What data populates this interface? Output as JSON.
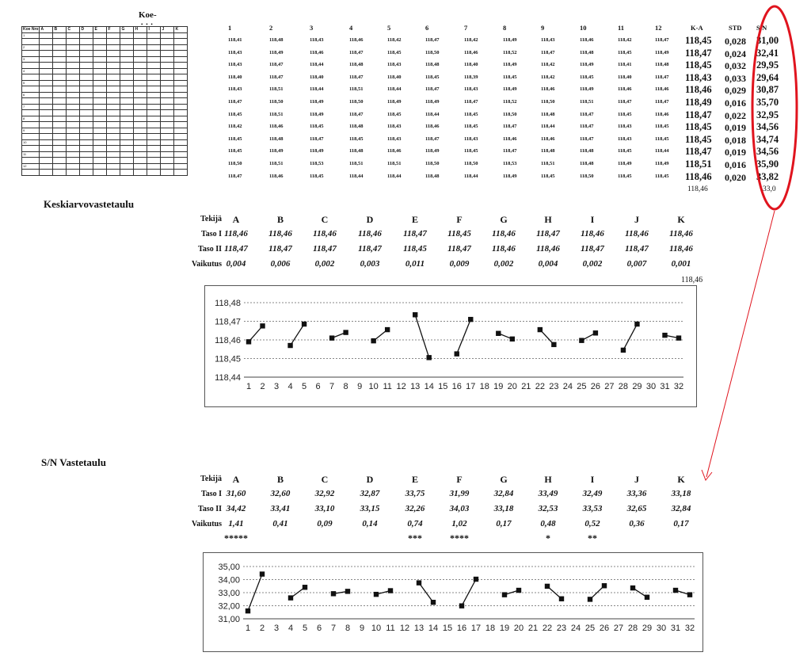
{
  "mini_table": {
    "title": "Koe-",
    "dots": "• • •",
    "headers": [
      "Koe Nro",
      "A",
      "B",
      "C",
      "D",
      "E",
      "F",
      "G",
      "H",
      "I",
      "J",
      "K"
    ],
    "row_numbers": [
      "1",
      "2",
      "3",
      "4",
      "5",
      "6",
      "7",
      "8",
      "9",
      "10",
      "11",
      "12"
    ]
  },
  "measure_table": {
    "column_headers": [
      "1",
      "2",
      "3",
      "4",
      "5",
      "6",
      "7",
      "8",
      "9",
      "10",
      "11",
      "12",
      "K-A",
      "STD",
      "S/N"
    ],
    "rows": [
      {
        "values": [
          "118,41",
          "118,48",
          "118,43",
          "118,46",
          "118,42",
          "118,47",
          "118,42",
          "118,49",
          "118,43",
          "118,46",
          "118,42",
          "118,47"
        ],
        "ka": "118,45",
        "std": "0,028",
        "sn": "31,00"
      },
      {
        "values": [
          "118,43",
          "118,49",
          "118,46",
          "118,47",
          "118,45",
          "118,50",
          "118,46",
          "118,52",
          "118,47",
          "118,48",
          "118,45",
          "118,49"
        ],
        "ka": "118,47",
        "std": "0,024",
        "sn": "32,41"
      },
      {
        "values": [
          "118,43",
          "118,47",
          "118,44",
          "118,48",
          "118,43",
          "118,48",
          "118,40",
          "118,49",
          "118,42",
          "118,49",
          "118,41",
          "118,48"
        ],
        "ka": "118,45",
        "std": "0,032",
        "sn": "29,95"
      },
      {
        "values": [
          "118,40",
          "118,47",
          "118,40",
          "118,47",
          "118,40",
          "118,45",
          "118,39",
          "118,45",
          "118,42",
          "118,45",
          "118,40",
          "118,47"
        ],
        "ka": "118,43",
        "std": "0,033",
        "sn": "29,64"
      },
      {
        "values": [
          "118,43",
          "118,51",
          "118,44",
          "118,51",
          "118,44",
          "118,47",
          "118,43",
          "118,49",
          "118,46",
          "118,49",
          "118,46",
          "118,46"
        ],
        "ka": "118,46",
        "std": "0,029",
        "sn": "30,87"
      },
      {
        "values": [
          "118,47",
          "118,50",
          "118,49",
          "118,50",
          "118,49",
          "118,49",
          "118,47",
          "118,52",
          "118,50",
          "118,51",
          "118,47",
          "118,47"
        ],
        "ka": "118,49",
        "std": "0,016",
        "sn": "35,70"
      },
      {
        "values": [
          "118,45",
          "118,51",
          "118,49",
          "118,47",
          "118,45",
          "118,44",
          "118,45",
          "118,50",
          "118,48",
          "118,47",
          "118,45",
          "118,46"
        ],
        "ka": "118,47",
        "std": "0,022",
        "sn": "32,95"
      },
      {
        "values": [
          "118,42",
          "118,46",
          "118,45",
          "118,48",
          "118,43",
          "118,46",
          "118,45",
          "118,47",
          "118,44",
          "118,47",
          "118,43",
          "118,45"
        ],
        "ka": "118,45",
        "std": "0,019",
        "sn": "34,56"
      },
      {
        "values": [
          "118,45",
          "118,48",
          "118,47",
          "118,45",
          "118,43",
          "118,47",
          "118,43",
          "118,46",
          "118,46",
          "118,47",
          "118,43",
          "118,45"
        ],
        "ka": "118,45",
        "std": "0,018",
        "sn": "34,74"
      },
      {
        "values": [
          "118,45",
          "118,49",
          "118,49",
          "118,48",
          "118,46",
          "118,49",
          "118,45",
          "118,47",
          "118,48",
          "118,48",
          "118,45",
          "118,44"
        ],
        "ka": "118,47",
        "std": "0,019",
        "sn": "34,56"
      },
      {
        "values": [
          "118,50",
          "118,51",
          "118,53",
          "118,51",
          "118,51",
          "118,50",
          "118,50",
          "118,53",
          "118,51",
          "118,48",
          "118,49",
          "118,49"
        ],
        "ka": "118,51",
        "std": "0,016",
        "sn": "35,90"
      },
      {
        "values": [
          "118,47",
          "118,46",
          "118,45",
          "118,44",
          "118,44",
          "118,48",
          "118,44",
          "118,49",
          "118,45",
          "118,50",
          "118,45",
          "118,45"
        ],
        "ka": "118,46",
        "std": "0,020",
        "sn": "33,82"
      }
    ],
    "footer_mean": "118,46",
    "footer_sn": "33,0"
  },
  "mean_table": {
    "title": "Keskiarvovastetaulu",
    "labels": {
      "factor": "Tekijä",
      "level1": "Taso I",
      "level2": "Taso II",
      "effect": "Vaikutus"
    },
    "factors": [
      "A",
      "B",
      "C",
      "D",
      "E",
      "F",
      "G",
      "H",
      "I",
      "J",
      "K"
    ],
    "level1": [
      "118,46",
      "118,46",
      "118,46",
      "118,46",
      "118,47",
      "118,45",
      "118,46",
      "118,47",
      "118,46",
      "118,46",
      "118,46"
    ],
    "level2": [
      "118,47",
      "118,47",
      "118,47",
      "118,47",
      "118,45",
      "118,47",
      "118,46",
      "118,46",
      "118,47",
      "118,47",
      "118,46"
    ],
    "effect": [
      "0,004",
      "0,006",
      "0,002",
      "0,003",
      "0,011",
      "0,009",
      "0,002",
      "0,004",
      "0,002",
      "0,007",
      "0,001"
    ],
    "grand_mean": "118,46"
  },
  "sn_table": {
    "title": "S/N Vastetaulu",
    "labels": {
      "factor": "Tekijä",
      "level1": "Taso I",
      "level2": "Taso II",
      "effect": "Vaikutus"
    },
    "factors": [
      "A",
      "B",
      "C",
      "D",
      "E",
      "F",
      "G",
      "H",
      "I",
      "J",
      "K"
    ],
    "level1": [
      "31,60",
      "32,60",
      "32,92",
      "32,87",
      "33,75",
      "31,99",
      "32,84",
      "33,49",
      "32,49",
      "33,36",
      "33,18"
    ],
    "level2": [
      "34,42",
      "33,41",
      "33,10",
      "33,15",
      "32,26",
      "34,03",
      "33,18",
      "32,53",
      "33,53",
      "32,65",
      "32,84"
    ],
    "effect": [
      "1,41",
      "0,41",
      "0,09",
      "0,14",
      "0,74",
      "1,02",
      "0,17",
      "0,48",
      "0,52",
      "0,36",
      "0,17"
    ],
    "significance": [
      "*****",
      "",
      "",
      "",
      "***",
      "****",
      "",
      "*",
      "**",
      "",
      ""
    ]
  },
  "chart_data": [
    {
      "type": "line",
      "xticks": [
        "1",
        "2",
        "3",
        "4",
        "5",
        "6",
        "7",
        "8",
        "9",
        "10",
        "11",
        "12",
        "13",
        "14",
        "15",
        "16",
        "17",
        "18",
        "19",
        "20",
        "21",
        "22",
        "23",
        "24",
        "25",
        "26",
        "27",
        "28",
        "29",
        "30",
        "31",
        "32"
      ],
      "yticks": [
        "118,44",
        "118,45",
        "118,46",
        "118,47",
        "118,48"
      ],
      "ylim": [
        118.44,
        118.48
      ],
      "grid": true,
      "segments": [
        {
          "x": [
            1,
            2
          ],
          "y": [
            118.459,
            118.4675
          ]
        },
        {
          "x": [
            4,
            5
          ],
          "y": [
            118.457,
            118.4685
          ]
        },
        {
          "x": [
            7,
            8
          ],
          "y": [
            118.461,
            118.464
          ]
        },
        {
          "x": [
            10,
            11
          ],
          "y": [
            118.4595,
            118.4655
          ]
        },
        {
          "x": [
            13,
            14
          ],
          "y": [
            118.4735,
            118.4505
          ]
        },
        {
          "x": [
            16,
            17
          ],
          "y": [
            118.4525,
            118.471
          ]
        },
        {
          "x": [
            19,
            20
          ],
          "y": [
            118.4635,
            118.4605
          ]
        },
        {
          "x": [
            22,
            23
          ],
          "y": [
            118.4655,
            118.4575
          ]
        },
        {
          "x": [
            25,
            26
          ],
          "y": [
            118.4597,
            118.4637
          ]
        },
        {
          "x": [
            28,
            29
          ],
          "y": [
            118.4545,
            118.4685
          ]
        },
        {
          "x": [
            31,
            32
          ],
          "y": [
            118.4625,
            118.461
          ]
        }
      ]
    },
    {
      "type": "line",
      "xticks": [
        "1",
        "2",
        "3",
        "4",
        "5",
        "6",
        "7",
        "8",
        "9",
        "10",
        "11",
        "12",
        "13",
        "14",
        "15",
        "16",
        "17",
        "18",
        "19",
        "20",
        "21",
        "22",
        "23",
        "24",
        "25",
        "26",
        "27",
        "28",
        "29",
        "30",
        "31",
        "32"
      ],
      "yticks": [
        "31,00",
        "32,00",
        "33,00",
        "34,00",
        "35,00"
      ],
      "ylim": [
        31.0,
        35.0
      ],
      "grid": true,
      "segments": [
        {
          "x": [
            1,
            2
          ],
          "y": [
            31.6,
            34.42
          ]
        },
        {
          "x": [
            4,
            5
          ],
          "y": [
            32.6,
            33.41
          ]
        },
        {
          "x": [
            7,
            8
          ],
          "y": [
            32.92,
            33.1
          ]
        },
        {
          "x": [
            10,
            11
          ],
          "y": [
            32.87,
            33.15
          ]
        },
        {
          "x": [
            13,
            14
          ],
          "y": [
            33.75,
            32.26
          ]
        },
        {
          "x": [
            16,
            17
          ],
          "y": [
            31.99,
            34.03
          ]
        },
        {
          "x": [
            19,
            20
          ],
          "y": [
            32.84,
            33.18
          ]
        },
        {
          "x": [
            22,
            23
          ],
          "y": [
            33.49,
            32.53
          ]
        },
        {
          "x": [
            25,
            26
          ],
          "y": [
            32.49,
            33.53
          ]
        },
        {
          "x": [
            28,
            29
          ],
          "y": [
            33.36,
            32.65
          ]
        },
        {
          "x": [
            31,
            32
          ],
          "y": [
            33.18,
            32.84
          ]
        }
      ]
    }
  ],
  "annotation": {
    "highlight_color": "#e0141e",
    "target": "S/N column"
  }
}
